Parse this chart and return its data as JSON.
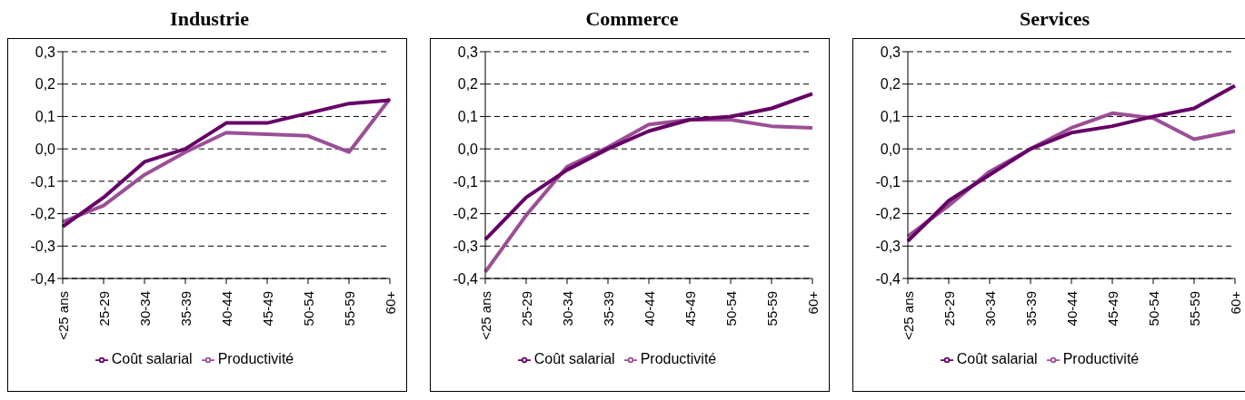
{
  "chart_data": [
    {
      "type": "line",
      "title": "Industrie",
      "categories": [
        "<25 ans",
        "25-29",
        "30-34",
        "35-39",
        "40-44",
        "45-49",
        "50-54",
        "55-59",
        "60+"
      ],
      "series": [
        {
          "name": "Productivité",
          "color": "#9b4f96",
          "values": [
            -0.225,
            -0.175,
            -0.08,
            -0.01,
            0.05,
            0.045,
            0.04,
            -0.01,
            0.155
          ]
        },
        {
          "name": "Coût salarial",
          "color": "#660066",
          "values": [
            -0.24,
            -0.15,
            -0.04,
            0.0,
            0.08,
            0.08,
            0.11,
            0.14,
            0.15
          ]
        }
      ],
      "ylim": [
        -0.4,
        0.3
      ],
      "yticks": [
        {
          "value": -0.4,
          "label": "-0,4"
        },
        {
          "value": -0.3,
          "label": "-0,3"
        },
        {
          "value": -0.2,
          "label": "-0,2"
        },
        {
          "value": -0.1,
          "label": "-0,1"
        },
        {
          "value": 0,
          "label": "0,0"
        },
        {
          "value": 0.1,
          "label": "0,1"
        },
        {
          "value": 0.2,
          "label": "0,2"
        },
        {
          "value": 0.3,
          "label": "0,3"
        }
      ],
      "grid": "y",
      "legend": "bottom",
      "marker": "none",
      "line_style": "solid"
    },
    {
      "type": "line",
      "title": "Commerce",
      "categories": [
        "<25 ans",
        "25-29",
        "30-34",
        "35-39",
        "40-44",
        "45-49",
        "50-54",
        "55-59",
        "60+"
      ],
      "series": [
        {
          "name": "Productivité",
          "color": "#9b4f96",
          "values": [
            -0.38,
            -0.205,
            -0.055,
            0.005,
            0.075,
            0.09,
            0.09,
            0.07,
            0.065
          ]
        },
        {
          "name": "Coût salarial",
          "color": "#660066",
          "values": [
            -0.28,
            -0.15,
            -0.065,
            0.0,
            0.055,
            0.09,
            0.1,
            0.125,
            0.17
          ]
        }
      ],
      "ylim": [
        -0.4,
        0.3
      ],
      "yticks": [
        {
          "value": -0.4,
          "label": "-0,4"
        },
        {
          "value": -0.3,
          "label": "-0,3"
        },
        {
          "value": -0.2,
          "label": "-0,2"
        },
        {
          "value": -0.1,
          "label": "-0,1"
        },
        {
          "value": 0,
          "label": "0,0"
        },
        {
          "value": 0.1,
          "label": "0,1"
        },
        {
          "value": 0.2,
          "label": "0,2"
        },
        {
          "value": 0.3,
          "label": "0,3"
        }
      ],
      "grid": "y",
      "legend": "bottom",
      "marker": "none",
      "line_style": "solid"
    },
    {
      "type": "line",
      "title": "Services",
      "categories": [
        "<25 ans",
        "25-29",
        "30-34",
        "35-39",
        "40-44",
        "45-49",
        "50-54",
        "55-59",
        "60+"
      ],
      "series": [
        {
          "name": "Productivité",
          "color": "#9b4f96",
          "values": [
            -0.27,
            -0.175,
            -0.07,
            0.0,
            0.065,
            0.11,
            0.095,
            0.03,
            0.055
          ]
        },
        {
          "name": "Coût salarial",
          "color": "#660066",
          "values": [
            -0.285,
            -0.16,
            -0.08,
            0.0,
            0.05,
            0.07,
            0.1,
            0.125,
            0.195
          ]
        }
      ],
      "ylim": [
        -0.4,
        0.3
      ],
      "yticks": [
        {
          "value": -0.4,
          "label": "-0,4"
        },
        {
          "value": -0.3,
          "label": "-0,3"
        },
        {
          "value": -0.2,
          "label": "-0,2"
        },
        {
          "value": -0.1,
          "label": "-0,1"
        },
        {
          "value": 0,
          "label": "0,0"
        },
        {
          "value": 0.1,
          "label": "0,1"
        },
        {
          "value": 0.2,
          "label": "0,2"
        },
        {
          "value": 0.3,
          "label": "0,3"
        }
      ],
      "grid": "y",
      "legend": "bottom",
      "marker": "none",
      "line_style": "solid"
    }
  ]
}
